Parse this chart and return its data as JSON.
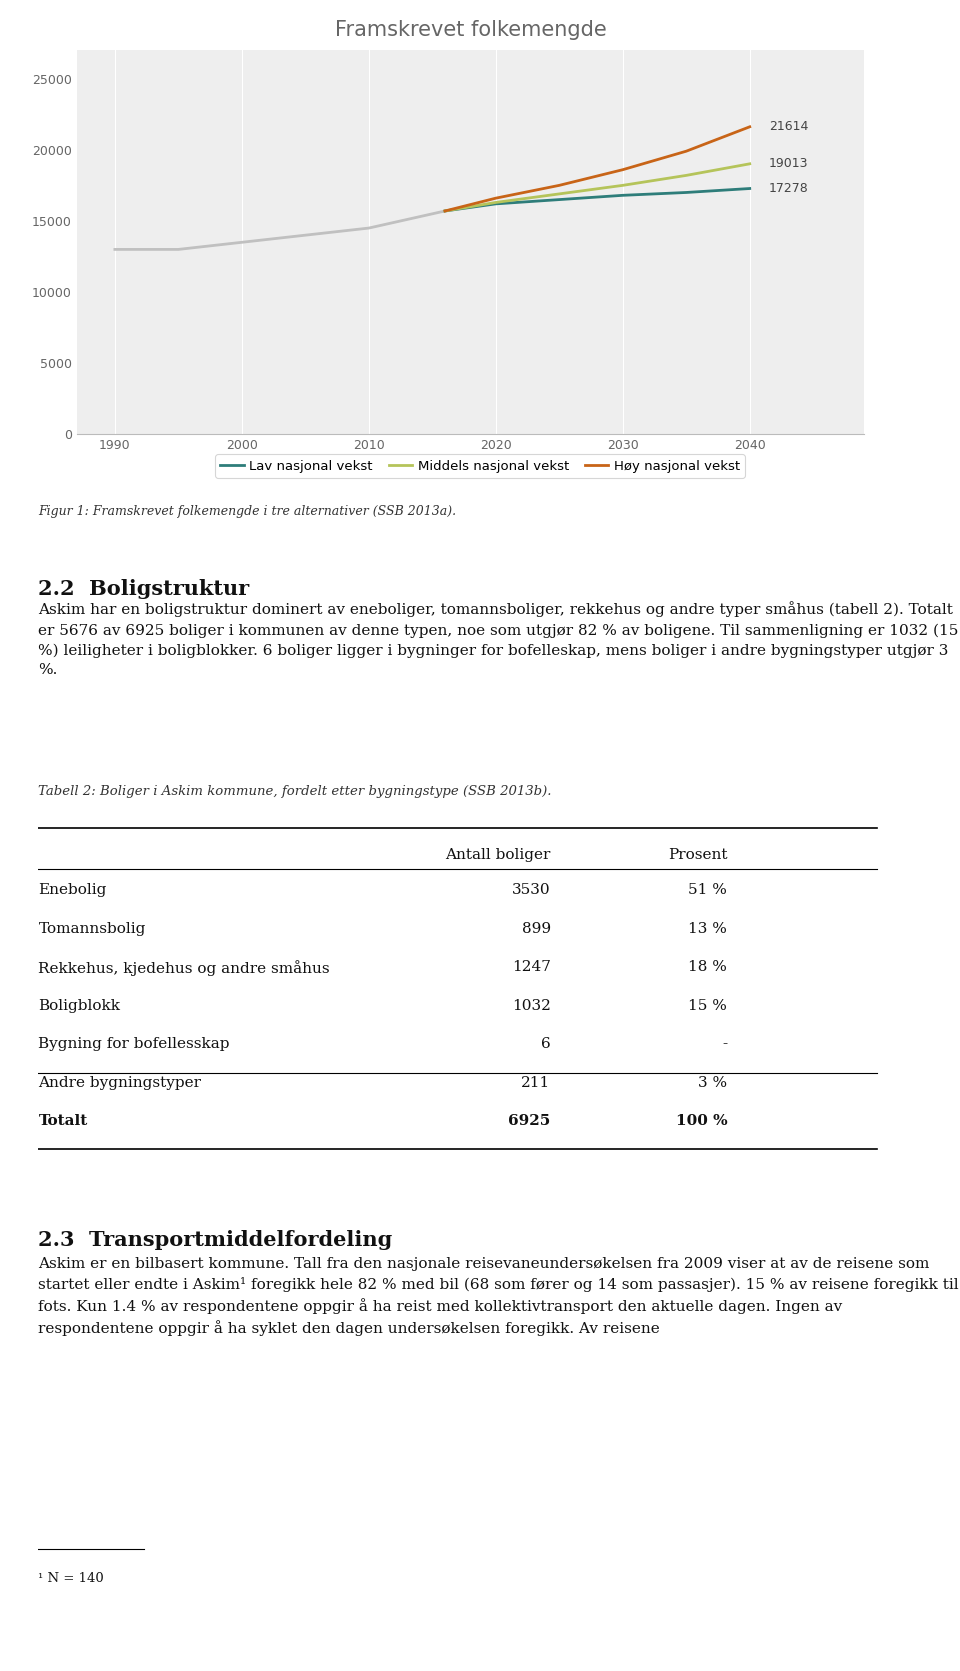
{
  "title": "Framskrevet folkemengde",
  "chart_bg": "#eeeeee",
  "fig_bg": "#ffffff",
  "years_historical": [
    1990,
    1995,
    2000,
    2005,
    2010,
    2015,
    2016
  ],
  "values_historical": [
    13000,
    13000,
    13500,
    14000,
    14500,
    15500,
    15700
  ],
  "years_forecast": [
    2016,
    2020,
    2025,
    2030,
    2035,
    2040
  ],
  "values_lav": [
    15700,
    16200,
    16500,
    16800,
    17000,
    17278
  ],
  "values_middels": [
    15700,
    16300,
    16900,
    17500,
    18200,
    19013
  ],
  "values_hoy": [
    15700,
    16600,
    17500,
    18600,
    19900,
    21614
  ],
  "color_historical": "#c0c0c0",
  "color_lav": "#2e7d7a",
  "color_middels": "#b5c45a",
  "color_hoy": "#c86417",
  "label_lav": "Lav nasjonal vekst",
  "label_middels": "Middels nasjonal vekst",
  "label_hoy": "Høy nasjonal vekst",
  "end_labels": [
    "21614",
    "19013",
    "17278"
  ],
  "yticks": [
    0,
    5000,
    10000,
    15000,
    20000,
    25000
  ],
  "xticks": [
    1990,
    2000,
    2010,
    2020,
    2030,
    2040
  ],
  "ylim": [
    0,
    27000
  ],
  "fig_caption": "Figur 1: Framskrevet folkemengde i tre alternativer (SSB 2013a).",
  "section_heading": "2.2  Boligstruktur",
  "section_text1": "Askim har en boligstruktur dominert av eneboliger, tomannsboliger, rekkehus og andre typer småhus (tabell 2). Totalt er 5676 av 6925 boliger i kommunen av denne typen, noe som utgjør 82 % av boligene. Til sammenligning er 1032 (15 %) leiligheter i boligblokker. 6 boliger ligger i bygninger for bofelleskap, mens boliger i andre bygningstyper utgjør 3 %.",
  "table_caption": "Tabell 2: Boliger i Askim kommune, fordelt etter bygningstype (SSB 2013b).",
  "table_col_headers": [
    "",
    "Antall boliger",
    "Prosent"
  ],
  "table_rows": [
    [
      "Enebolig",
      "3530",
      "51 %"
    ],
    [
      "Tomannsbolig",
      "899",
      "13 %"
    ],
    [
      "Rekkehus, kjedehus og andre småhus",
      "1247",
      "18 %"
    ],
    [
      "Boligblokk",
      "1032",
      "15 %"
    ],
    [
      "Bygning for bofellesskap",
      "6",
      "-"
    ],
    [
      "Andre bygningstyper",
      "211",
      "3 %"
    ],
    [
      "Totalt",
      "6925",
      "100 %"
    ]
  ],
  "section2_heading": "2.3  Transportmiddelfordeling",
  "section2_text": "Askim er en bilbasert kommune. Tall fra den nasjonale reisevaneundersøkelsen fra 2009 viser at av de reisene som startet eller endte i Askim¹ foregikk hele 82 % med bil (68 som fører og 14 som passasjer). 15 % av reisene foregikk til fots. Kun 1.4 % av respondentene oppgir å ha reist med kollektivtransport den aktuelle dagen. Ingen av respondentene oppgir å ha syklet den dagen undersøkelsen foregikk. Av reisene",
  "footnote": "¹ N = 140"
}
